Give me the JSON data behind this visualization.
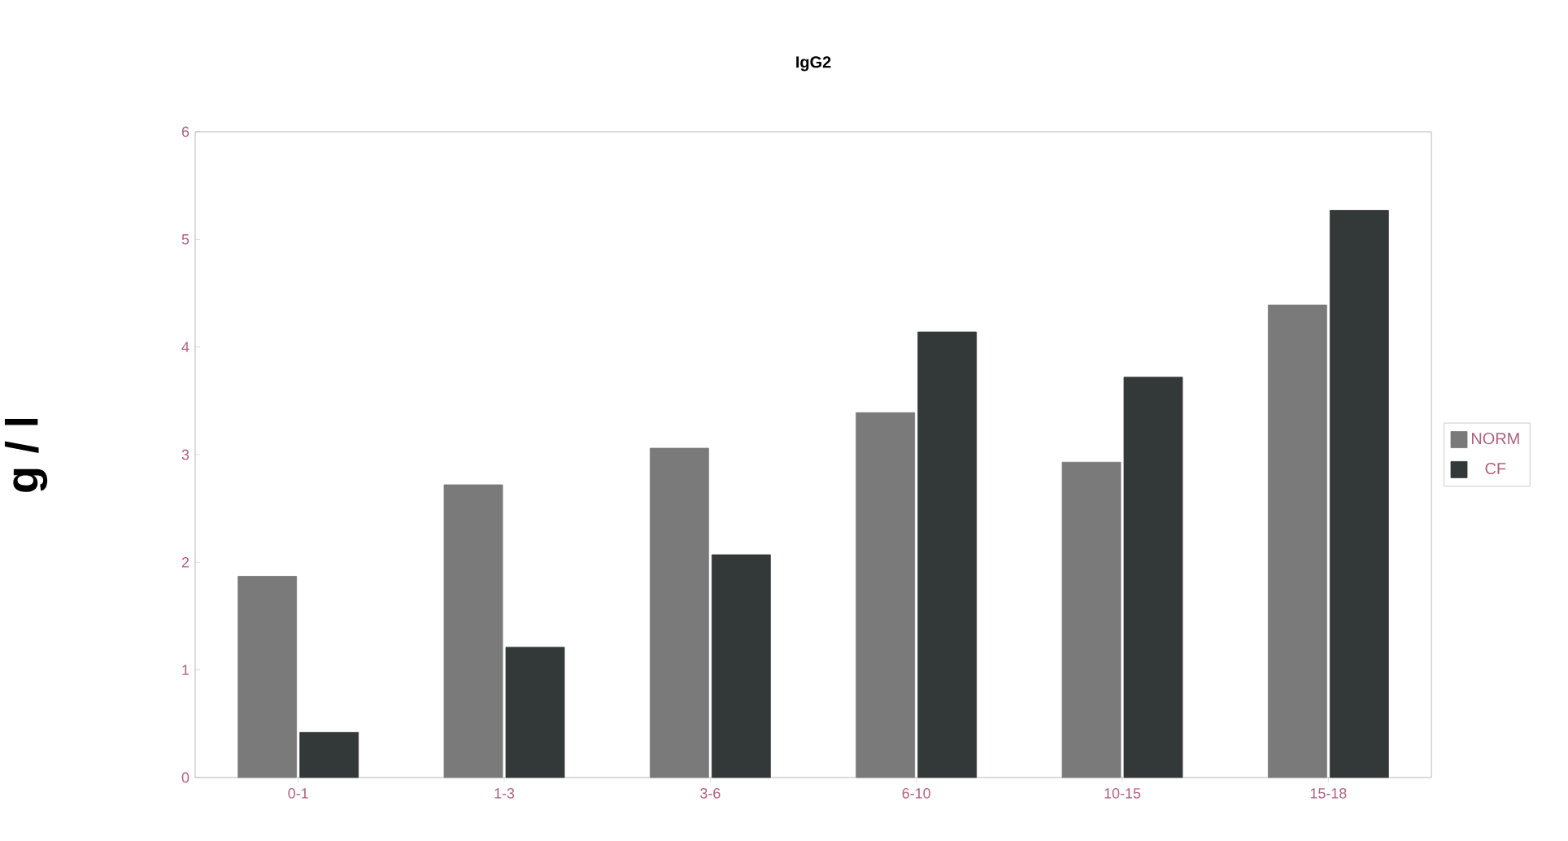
{
  "chart_data": {
    "type": "bar",
    "title": "IgG2",
    "ylabel": "g / l",
    "categories": [
      "0-1",
      "1-3",
      "3-6",
      "6-10",
      "10-15",
      "15-18"
    ],
    "series": [
      {
        "name": "NORM",
        "color": "#7a7a7a",
        "values": [
          1.87,
          2.72,
          3.06,
          3.39,
          2.93,
          4.39
        ]
      },
      {
        "name": "CF",
        "color": "#333838",
        "values": [
          0.42,
          1.21,
          2.07,
          4.14,
          3.72,
          5.27
        ]
      }
    ],
    "ylim": [
      0,
      6
    ],
    "yticks": [
      0,
      1,
      2,
      3,
      4,
      5,
      6
    ],
    "grid": false,
    "legend": "right"
  }
}
